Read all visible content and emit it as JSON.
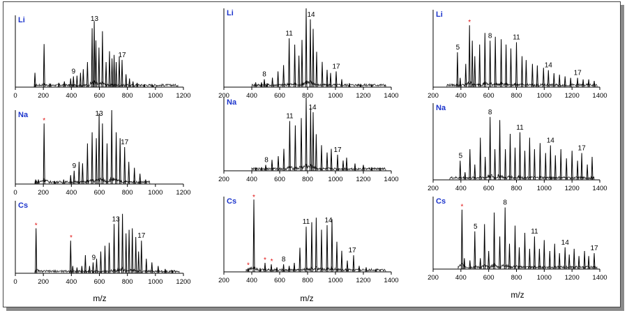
{
  "chart_data": [
    {
      "type": "line",
      "ion": "Li",
      "xlim": [
        0,
        1200
      ],
      "xticks": [
        0,
        200,
        400,
        600,
        800,
        1000,
        1200
      ],
      "x_range": [
        140,
        1160
      ],
      "peaks": [
        [
          140,
          0.2
        ],
        [
          205,
          0.6
        ],
        [
          250,
          0.05
        ],
        [
          310,
          0.06
        ],
        [
          350,
          0.08
        ],
        [
          395,
          0.12
        ],
        [
          415,
          0.15
        ],
        [
          440,
          0.16
        ],
        [
          465,
          0.2
        ],
        [
          485,
          0.25
        ],
        [
          515,
          0.35
        ],
        [
          548,
          0.82
        ],
        [
          563,
          0.92
        ],
        [
          575,
          0.65
        ],
        [
          597,
          0.55
        ],
        [
          622,
          0.78
        ],
        [
          648,
          0.35
        ],
        [
          672,
          0.5
        ],
        [
          690,
          0.4
        ],
        [
          705,
          0.45
        ],
        [
          720,
          0.35
        ],
        [
          742,
          0.42
        ],
        [
          762,
          0.38
        ],
        [
          790,
          0.18
        ],
        [
          815,
          0.12
        ],
        [
          840,
          0.08
        ],
        [
          870,
          0.06
        ],
        [
          920,
          0.04
        ],
        [
          980,
          0.03
        ]
      ],
      "labels": [
        {
          "text": "9",
          "x": 415
        },
        {
          "text": "13",
          "x": 565
        },
        {
          "text": "17",
          "x": 762
        }
      ],
      "stars": []
    },
    {
      "type": "line",
      "ion": "Li",
      "xlim": [
        200,
        1400
      ],
      "xticks": [
        200,
        400,
        600,
        800,
        1000,
        1200,
        1400
      ],
      "x_range": [
        400,
        1360
      ],
      "peaks": [
        [
          428,
          0.06
        ],
        [
          470,
          0.06
        ],
        [
          490,
          0.1
        ],
        [
          510,
          0.05
        ],
        [
          548,
          0.12
        ],
        [
          588,
          0.2
        ],
        [
          628,
          0.28
        ],
        [
          668,
          0.62
        ],
        [
          708,
          0.54
        ],
        [
          738,
          0.4
        ],
        [
          760,
          0.6
        ],
        [
          790,
          1.0
        ],
        [
          820,
          0.86
        ],
        [
          840,
          0.74
        ],
        [
          865,
          0.45
        ],
        [
          905,
          0.32
        ],
        [
          940,
          0.22
        ],
        [
          965,
          0.18
        ],
        [
          1005,
          0.2
        ],
        [
          1045,
          0.1
        ],
        [
          1100,
          0.05
        ],
        [
          1180,
          0.04
        ],
        [
          1260,
          0.03
        ]
      ],
      "labels": [
        {
          "text": "8",
          "x": 490
        },
        {
          "text": "11",
          "x": 668
        },
        {
          "text": "14",
          "x": 825
        },
        {
          "text": "17",
          "x": 1005
        }
      ],
      "stars": []
    },
    {
      "type": "line",
      "ion": "Li",
      "xlim": [
        200,
        1400
      ],
      "xticks": [
        200,
        400,
        600,
        800,
        1000,
        1200,
        1400
      ],
      "x_range": [
        300,
        1380
      ],
      "peaks": [
        [
          375,
          0.45
        ],
        [
          395,
          0.12
        ],
        [
          435,
          0.3
        ],
        [
          462,
          0.8
        ],
        [
          482,
          0.6
        ],
        [
          500,
          0.4
        ],
        [
          535,
          0.55
        ],
        [
          573,
          0.7
        ],
        [
          610,
          0.6
        ],
        [
          648,
          0.65
        ],
        [
          690,
          0.62
        ],
        [
          725,
          0.55
        ],
        [
          760,
          0.5
        ],
        [
          800,
          0.58
        ],
        [
          840,
          0.4
        ],
        [
          870,
          0.35
        ],
        [
          915,
          0.3
        ],
        [
          950,
          0.28
        ],
        [
          995,
          0.25
        ],
        [
          1030,
          0.22
        ],
        [
          1070,
          0.18
        ],
        [
          1110,
          0.16
        ],
        [
          1150,
          0.14
        ],
        [
          1190,
          0.12
        ],
        [
          1240,
          0.12
        ],
        [
          1280,
          0.1
        ],
        [
          1320,
          0.1
        ],
        [
          1360,
          0.08
        ]
      ],
      "labels": [
        {
          "text": "5",
          "x": 378
        },
        {
          "text": "8",
          "x": 610
        },
        {
          "text": "11",
          "x": 800
        },
        {
          "text": "14",
          "x": 1030
        },
        {
          "text": "17",
          "x": 1240
        }
      ],
      "stars": [
        462
      ]
    },
    {
      "type": "line",
      "ion": "Na",
      "xlim": [
        0,
        1200
      ],
      "xticks": [
        0,
        200,
        400,
        600,
        800,
        1000,
        1200
      ],
      "x_range": [
        140,
        960
      ],
      "peaks": [
        [
          145,
          0.06
        ],
        [
          165,
          0.06
        ],
        [
          205,
          0.82
        ],
        [
          280,
          0.04
        ],
        [
          345,
          0.06
        ],
        [
          395,
          0.12
        ],
        [
          420,
          0.18
        ],
        [
          455,
          0.3
        ],
        [
          480,
          0.28
        ],
        [
          515,
          0.55
        ],
        [
          548,
          0.7
        ],
        [
          578,
          0.62
        ],
        [
          598,
          0.96
        ],
        [
          622,
          0.82
        ],
        [
          655,
          0.55
        ],
        [
          688,
          1.0
        ],
        [
          720,
          0.7
        ],
        [
          748,
          0.62
        ],
        [
          780,
          0.5
        ],
        [
          810,
          0.3
        ],
        [
          850,
          0.22
        ],
        [
          890,
          0.14
        ],
        [
          930,
          0.06
        ]
      ],
      "labels": [
        {
          "text": "9",
          "x": 420
        },
        {
          "text": "13",
          "x": 598
        },
        {
          "text": "17",
          "x": 780
        }
      ],
      "stars": [
        205
      ]
    },
    {
      "type": "line",
      "ion": "Na",
      "xlim": [
        200,
        1400
      ],
      "xticks": [
        200,
        400,
        600,
        800,
        1000,
        1200,
        1400
      ],
      "x_range": [
        400,
        1360
      ],
      "peaks": [
        [
          430,
          0.04
        ],
        [
          470,
          0.05
        ],
        [
          500,
          0.08
        ],
        [
          545,
          0.15
        ],
        [
          590,
          0.2
        ],
        [
          630,
          0.3
        ],
        [
          672,
          0.68
        ],
        [
          712,
          0.62
        ],
        [
          755,
          0.72
        ],
        [
          790,
          1.0
        ],
        [
          822,
          0.86
        ],
        [
          840,
          0.8
        ],
        [
          862,
          0.5
        ],
        [
          900,
          0.35
        ],
        [
          940,
          0.25
        ],
        [
          970,
          0.3
        ],
        [
          1015,
          0.22
        ],
        [
          1055,
          0.14
        ],
        [
          1080,
          0.18
        ],
        [
          1140,
          0.1
        ],
        [
          1200,
          0.08
        ],
        [
          1260,
          0.05
        ],
        [
          1320,
          0.04
        ]
      ],
      "labels": [
        {
          "text": "8",
          "x": 505
        },
        {
          "text": "11",
          "x": 672
        },
        {
          "text": "14",
          "x": 835
        },
        {
          "text": "17",
          "x": 1015
        }
      ],
      "stars": []
    },
    {
      "type": "line",
      "ion": "Na",
      "xlim": [
        200,
        1400
      ],
      "xticks": [
        200,
        400,
        600,
        800,
        1000,
        1200,
        1400
      ],
      "x_range": [
        320,
        1360
      ],
      "peaks": [
        [
          395,
          0.25
        ],
        [
          430,
          0.1
        ],
        [
          465,
          0.4
        ],
        [
          500,
          0.2
        ],
        [
          540,
          0.55
        ],
        [
          575,
          0.3
        ],
        [
          610,
          0.82
        ],
        [
          645,
          0.4
        ],
        [
          680,
          0.78
        ],
        [
          720,
          0.4
        ],
        [
          755,
          0.6
        ],
        [
          790,
          0.42
        ],
        [
          825,
          0.62
        ],
        [
          860,
          0.38
        ],
        [
          895,
          0.55
        ],
        [
          930,
          0.4
        ],
        [
          970,
          0.48
        ],
        [
          1010,
          0.35
        ],
        [
          1045,
          0.45
        ],
        [
          1080,
          0.32
        ],
        [
          1120,
          0.4
        ],
        [
          1160,
          0.28
        ],
        [
          1200,
          0.38
        ],
        [
          1240,
          0.25
        ],
        [
          1270,
          0.35
        ],
        [
          1310,
          0.2
        ],
        [
          1345,
          0.3
        ]
      ],
      "labels": [
        {
          "text": "5",
          "x": 398
        },
        {
          "text": "8",
          "x": 610
        },
        {
          "text": "11",
          "x": 825
        },
        {
          "text": "14",
          "x": 1045
        },
        {
          "text": "17",
          "x": 1270
        }
      ],
      "stars": []
    },
    {
      "type": "line",
      "ion": "Cs",
      "xlim": [
        0,
        1200
      ],
      "xticks": [
        0,
        200,
        400,
        600,
        800,
        1000,
        1200
      ],
      "x_range": [
        140,
        1170
      ],
      "peaks": [
        [
          148,
          0.62
        ],
        [
          395,
          0.45
        ],
        [
          410,
          0.1
        ],
        [
          440,
          0.08
        ],
        [
          475,
          0.1
        ],
        [
          500,
          0.25
        ],
        [
          530,
          0.1
        ],
        [
          555,
          0.15
        ],
        [
          580,
          0.2
        ],
        [
          610,
          0.3
        ],
        [
          640,
          0.38
        ],
        [
          670,
          0.42
        ],
        [
          705,
          0.68
        ],
        [
          738,
          0.78
        ],
        [
          765,
          0.82
        ],
        [
          790,
          0.55
        ],
        [
          812,
          0.6
        ],
        [
          835,
          0.62
        ],
        [
          860,
          0.5
        ],
        [
          880,
          0.3
        ],
        [
          900,
          0.45
        ],
        [
          935,
          0.2
        ],
        [
          975,
          0.15
        ],
        [
          1020,
          0.1
        ],
        [
          1070,
          0.06
        ],
        [
          1120,
          0.04
        ]
      ],
      "labels": [
        {
          "text": "9",
          "x": 560
        },
        {
          "text": "13",
          "x": 718
        },
        {
          "text": "17",
          "x": 900
        }
      ],
      "stars": [
        148,
        398
      ]
    },
    {
      "type": "line",
      "ion": "Cs",
      "xlim": [
        200,
        1400
      ],
      "xticks": [
        200,
        400,
        600,
        800,
        1000,
        1200,
        1400
      ],
      "x_range": [
        360,
        1360
      ],
      "peaks": [
        [
          375,
          0.05
        ],
        [
          415,
          0.96
        ],
        [
          460,
          0.05
        ],
        [
          495,
          0.12
        ],
        [
          540,
          0.1
        ],
        [
          580,
          0.06
        ],
        [
          628,
          0.1
        ],
        [
          668,
          0.08
        ],
        [
          705,
          0.12
        ],
        [
          745,
          0.32
        ],
        [
          790,
          0.6
        ],
        [
          830,
          0.66
        ],
        [
          862,
          0.72
        ],
        [
          900,
          0.56
        ],
        [
          940,
          0.62
        ],
        [
          975,
          0.7
        ],
        [
          1010,
          0.4
        ],
        [
          1045,
          0.28
        ],
        [
          1085,
          0.15
        ],
        [
          1130,
          0.22
        ],
        [
          1170,
          0.08
        ],
        [
          1220,
          0.06
        ],
        [
          1290,
          0.04
        ]
      ],
      "labels": [
        {
          "text": "8",
          "x": 628
        },
        {
          "text": "11",
          "x": 790
        },
        {
          "text": "14",
          "x": 950
        },
        {
          "text": "17",
          "x": 1120
        }
      ],
      "stars": [
        375,
        415,
        495,
        543
      ]
    },
    {
      "type": "line",
      "ion": "Cs",
      "xlim": [
        200,
        1400
      ],
      "xticks": [
        200,
        400,
        600,
        800,
        1000,
        1200,
        1400
      ],
      "x_range": [
        380,
        1380
      ],
      "peaks": [
        [
          408,
          0.82
        ],
        [
          425,
          0.15
        ],
        [
          465,
          0.12
        ],
        [
          500,
          0.52
        ],
        [
          540,
          0.15
        ],
        [
          570,
          0.62
        ],
        [
          600,
          0.25
        ],
        [
          640,
          0.78
        ],
        [
          680,
          0.45
        ],
        [
          718,
          0.85
        ],
        [
          750,
          0.35
        ],
        [
          790,
          0.6
        ],
        [
          820,
          0.3
        ],
        [
          860,
          0.5
        ],
        [
          895,
          0.28
        ],
        [
          930,
          0.45
        ],
        [
          965,
          0.28
        ],
        [
          1000,
          0.4
        ],
        [
          1040,
          0.25
        ],
        [
          1075,
          0.35
        ],
        [
          1110,
          0.22
        ],
        [
          1150,
          0.3
        ],
        [
          1180,
          0.2
        ],
        [
          1215,
          0.28
        ],
        [
          1250,
          0.18
        ],
        [
          1290,
          0.25
        ],
        [
          1320,
          0.18
        ],
        [
          1360,
          0.22
        ]
      ],
      "labels": [
        {
          "text": "5",
          "x": 505
        },
        {
          "text": "8",
          "x": 718
        },
        {
          "text": "11",
          "x": 930
        },
        {
          "text": "14",
          "x": 1150
        },
        {
          "text": "17",
          "x": 1360
        }
      ],
      "stars": [
        408
      ]
    }
  ],
  "xlabel": "m/z"
}
